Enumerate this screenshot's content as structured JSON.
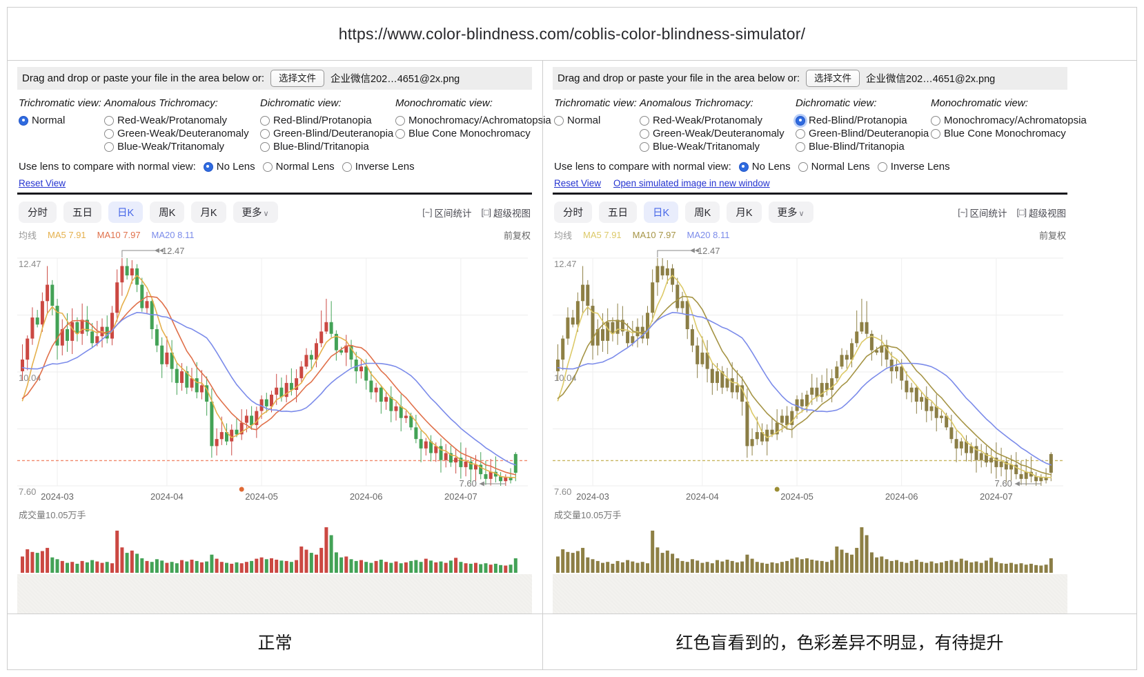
{
  "url_bar": {
    "url": "https://www.color-blindness.com/coblis-color-blindness-simulator/"
  },
  "colors": {
    "accent_blue": "#2f6bdf",
    "link_blue": "#2433d0",
    "tab_selected_bg": "#e9edfc",
    "tab_selected_text": "#4767e8",
    "upload_strip_bg": "#ededed",
    "divider_gray": "#cdcdcd",
    "chart_axis_text": "#8a8a8a"
  },
  "panels": [
    {
      "id": "normal-view",
      "upload": {
        "label": "Drag and drop or paste your file in the area below or:",
        "button": "选择文件",
        "filename": "企业微信202…4651@2x.png"
      },
      "groups": [
        {
          "title": "Trichromatic view:",
          "options": [
            {
              "label": "Normal",
              "name": "radio-normal",
              "selected": true
            }
          ]
        },
        {
          "title": "Anomalous Trichromacy:",
          "options": [
            {
              "label": "Red-Weak/Protanomaly",
              "name": "radio-red-weak-protanomaly",
              "selected": false
            },
            {
              "label": "Green-Weak/Deuteranomaly",
              "name": "radio-green-weak-deuteranomaly",
              "selected": false
            },
            {
              "label": "Blue-Weak/Tritanomaly",
              "name": "radio-blue-weak-tritanomaly",
              "selected": false
            }
          ]
        },
        {
          "title": "Dichromatic view:",
          "options": [
            {
              "label": "Red-Blind/Protanopia",
              "name": "radio-red-blind-protanopia",
              "selected": false
            },
            {
              "label": "Green-Blind/Deuteranopia",
              "name": "radio-green-blind-deuteranopia",
              "selected": false
            },
            {
              "label": "Blue-Blind/Tritanopia",
              "name": "radio-blue-blind-tritanopia",
              "selected": false
            }
          ]
        },
        {
          "title": "Monochromatic view:",
          "options": [
            {
              "label": "Monochromacy/Achromatopsia",
              "name": "radio-monochromacy-achromatopsia",
              "selected": false
            },
            {
              "label": "Blue Cone Monochromacy",
              "name": "radio-blue-cone-monochromacy",
              "selected": false
            }
          ]
        }
      ],
      "lens": {
        "label": "Use lens to compare with normal view:",
        "options": [
          {
            "label": "No Lens",
            "name": "radio-no-lens",
            "selected": true
          },
          {
            "label": "Normal Lens",
            "name": "radio-normal-lens",
            "selected": false
          },
          {
            "label": "Inverse Lens",
            "name": "radio-inverse-lens",
            "selected": false
          }
        ]
      },
      "links": [
        "Reset View"
      ],
      "caption": "正常",
      "palette": {
        "up": "#cb4842",
        "down": "#43a256",
        "ma5": "#e5b04c",
        "ma10": "#e0704a",
        "ma20": "#7b8bea",
        "dashed": "#f0876a",
        "dot": "#e06a35"
      }
    },
    {
      "id": "protanopia-view",
      "upload": {
        "label": "Drag and drop or paste your file in the area below or:",
        "button": "选择文件",
        "filename": "企业微信202…4651@2x.png"
      },
      "groups": [
        {
          "title": "Trichromatic view:",
          "options": [
            {
              "label": "Normal",
              "name": "radio-normal",
              "selected": false
            }
          ]
        },
        {
          "title": "Anomalous Trichromacy:",
          "options": [
            {
              "label": "Red-Weak/Protanomaly",
              "name": "radio-red-weak-protanomaly",
              "selected": false
            },
            {
              "label": "Green-Weak/Deuteranomaly",
              "name": "radio-green-weak-deuteranomaly",
              "selected": false
            },
            {
              "label": "Blue-Weak/Tritanomaly",
              "name": "radio-blue-weak-tritanomaly",
              "selected": false
            }
          ]
        },
        {
          "title": "Dichromatic view:",
          "options": [
            {
              "label": "Red-Blind/Protanopia",
              "name": "radio-red-blind-protanopia",
              "selected": true,
              "focus_ring": true
            },
            {
              "label": "Green-Blind/Deuteranopia",
              "name": "radio-green-blind-deuteranopia",
              "selected": false
            },
            {
              "label": "Blue-Blind/Tritanopia",
              "name": "radio-blue-blind-tritanopia",
              "selected": false
            }
          ]
        },
        {
          "title": "Monochromatic view:",
          "options": [
            {
              "label": "Monochromacy/Achromatopsia",
              "name": "radio-monochromacy-achromatopsia",
              "selected": false
            },
            {
              "label": "Blue Cone Monochromacy",
              "name": "radio-blue-cone-monochromacy",
              "selected": false
            }
          ]
        }
      ],
      "lens": {
        "label": "Use lens to compare with normal view:",
        "options": [
          {
            "label": "No Lens",
            "name": "radio-no-lens",
            "selected": true
          },
          {
            "label": "Normal Lens",
            "name": "radio-normal-lens",
            "selected": false
          },
          {
            "label": "Inverse Lens",
            "name": "radio-inverse-lens",
            "selected": false
          }
        ]
      },
      "links": [
        "Reset View",
        "Open simulated image in new window"
      ],
      "caption": "红色盲看到的，色彩差异不明显，有待提升",
      "palette": {
        "up": "#8e8044",
        "down": "#8a7d46",
        "ma5": "#dcc968",
        "ma10": "#a59445",
        "ma20": "#7b8bea",
        "dashed": "#c7b45e",
        "dot": "#9b8d33"
      }
    }
  ],
  "chart": {
    "tabs": [
      {
        "label": "分时",
        "name": "tab-minute",
        "selected": false
      },
      {
        "label": "五日",
        "name": "tab-5day",
        "selected": false
      },
      {
        "label": "日K",
        "name": "tab-daily-k",
        "selected": true
      },
      {
        "label": "周K",
        "name": "tab-weekly-k",
        "selected": false
      },
      {
        "label": "月K",
        "name": "tab-monthly-k",
        "selected": false
      },
      {
        "label": "更多",
        "name": "tab-more",
        "selected": false,
        "chevron": "∨"
      }
    ],
    "toolbar_right": [
      {
        "glyph": "[~]",
        "label": "区间统计",
        "name": "range-stats-button"
      },
      {
        "glyph": "[□]",
        "label": "超级视图",
        "name": "super-view-button"
      }
    ],
    "ma_row": {
      "avg_label": "均线",
      "ma5": "MA5 7.91",
      "ma10": "MA10 7.97",
      "ma20": "MA20 8.11",
      "right_label": "前复权"
    },
    "volume_label": "成交量10.05万手"
  },
  "chart_data": {
    "type": "candlestick+volume",
    "title": "Daily K-line 前复权",
    "y_ticks": [
      12.47,
      10.04,
      7.6
    ],
    "ylim": [
      7.6,
      12.47
    ],
    "x_labels": [
      "2024-03",
      "2024-04",
      "2024-05",
      "2024-06",
      "2024-07"
    ],
    "month_tick_indices": [
      7,
      29,
      48,
      69,
      88
    ],
    "first_open": 10.05,
    "closes": [
      10.3,
      10.75,
      11.2,
      11.05,
      11.55,
      11.9,
      11.45,
      10.6,
      10.95,
      10.7,
      11.1,
      10.85,
      11.15,
      10.9,
      10.65,
      10.8,
      11.0,
      10.75,
      11.3,
      11.95,
      12.3,
      12.1,
      12.25,
      11.9,
      11.4,
      11.55,
      10.95,
      10.6,
      10.2,
      10.45,
      10.1,
      9.8,
      10.05,
      9.7,
      9.9,
      9.6,
      9.75,
      9.4,
      8.45,
      8.6,
      8.75,
      8.55,
      8.8,
      8.7,
      8.95,
      9.1,
      8.9,
      9.2,
      9.45,
      9.3,
      9.55,
      9.7,
      9.5,
      9.8,
      9.65,
      9.9,
      10.15,
      10.4,
      10.3,
      10.65,
      10.9,
      11.1,
      10.85,
      10.5,
      10.45,
      10.6,
      10.3,
      10.05,
      10.15,
      9.85,
      9.6,
      9.7,
      9.4,
      9.5,
      9.2,
      9.3,
      9.05,
      9.1,
      8.85,
      8.6,
      8.4,
      8.55,
      8.3,
      8.45,
      8.15,
      8.3,
      8.1,
      8.2,
      8.0,
      8.12,
      7.95,
      8.05,
      7.85,
      7.75,
      7.9,
      7.8,
      7.7,
      7.78,
      7.72,
      7.88
    ],
    "gap_opens": {
      "99": 8.28
    },
    "high_overrides": {
      "5": 12.3,
      "20": 12.47,
      "60": 11.35,
      "61": 11.6,
      "62": 11.55,
      "99": 8.32
    },
    "low_overrides": {
      "7": 10.3,
      "38": 8.2,
      "93": 7.62,
      "96": 7.6,
      "97": 7.6,
      "99": 7.7
    },
    "pre_history": [
      11.2,
      11.3,
      11.1,
      11.0,
      10.9,
      10.8,
      10.7,
      10.5,
      10.3,
      10.1,
      9.9,
      9.7,
      9.5,
      9.3,
      9.2,
      9.1,
      9.0,
      9.2,
      9.5
    ],
    "ma_periods": [
      5,
      10,
      20
    ],
    "volumes": [
      3.6,
      5.2,
      4.6,
      4.4,
      4.8,
      5.5,
      3.4,
      3.0,
      2.6,
      2.2,
      2.4,
      2.0,
      2.6,
      2.3,
      2.8,
      2.5,
      2.2,
      2.4,
      2.1,
      9.3,
      5.6,
      4.4,
      4.9,
      4.2,
      3.2,
      2.6,
      2.4,
      3.0,
      2.7,
      2.2,
      2.4,
      2.1,
      2.8,
      2.5,
      2.9,
      2.6,
      2.3,
      2.5,
      4.0,
      3.1,
      2.4,
      2.2,
      2.0,
      2.3,
      2.1,
      2.4,
      2.6,
      3.1,
      3.4,
      3.0,
      3.2,
      2.9,
      2.7,
      2.6,
      2.4,
      2.8,
      5.8,
      5.1,
      4.4,
      4.0,
      5.5,
      10.05,
      8.3,
      4.5,
      3.4,
      3.6,
      3.0,
      2.6,
      2.8,
      2.4,
      2.2,
      2.6,
      2.9,
      2.4,
      2.2,
      2.5,
      2.1,
      2.3,
      2.6,
      2.8,
      2.4,
      3.1,
      2.7,
      2.3,
      2.5,
      2.2,
      2.7,
      3.3,
      2.4,
      2.1,
      2.0,
      2.2,
      1.9,
      2.1,
      1.8,
      2.0,
      1.7,
      1.6,
      1.8,
      3.2
    ],
    "volume_max": 10.05,
    "annotations": {
      "high": {
        "index": 20,
        "price": 12.47,
        "label": "12.47"
      },
      "low": {
        "index": 97,
        "price": 7.6,
        "label": "7.60"
      },
      "dashed_line_price": 8.14,
      "event_dot_index": 44
    }
  }
}
